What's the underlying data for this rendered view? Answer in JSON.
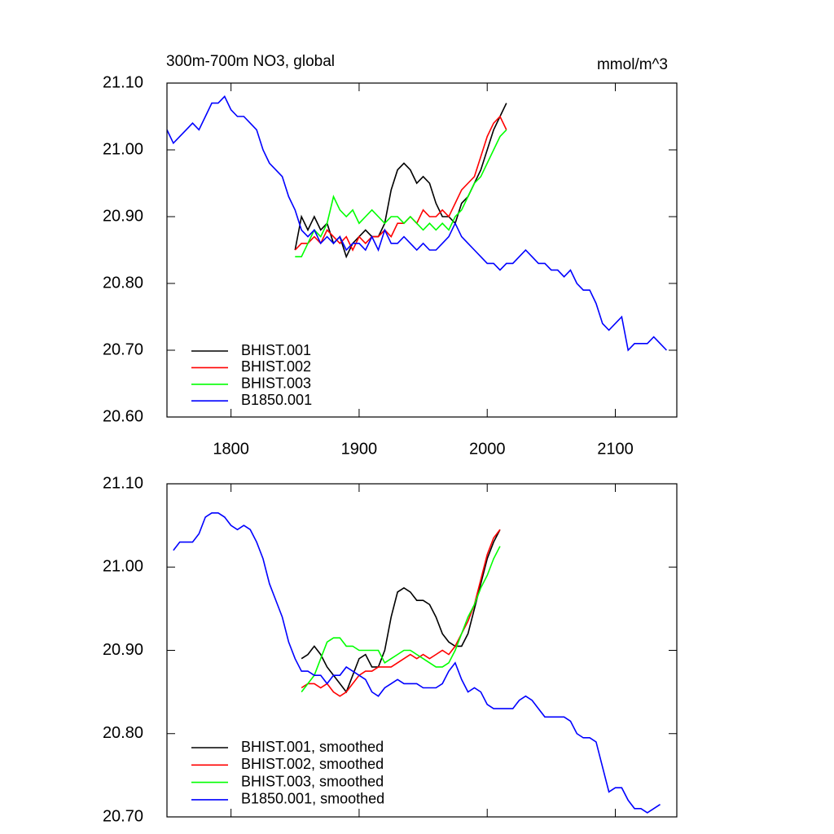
{
  "chart_data": [
    {
      "type": "line",
      "title": "300m-700m NO3, global",
      "units": "mmol/m^3",
      "xlim": [
        1750,
        2148
      ],
      "xticks": [
        1800,
        1900,
        2000,
        2100
      ],
      "ylim": [
        20.6,
        21.1
      ],
      "yticks": [
        {
          "value": 20.6,
          "label": "20.60"
        },
        {
          "value": 20.7,
          "label": "20.70"
        },
        {
          "value": 20.8,
          "label": "20.80"
        },
        {
          "value": 20.9,
          "label": "20.90"
        },
        {
          "value": 21.0,
          "label": "21.00"
        },
        {
          "value": 21.1,
          "label": "21.10"
        }
      ],
      "series": [
        {
          "name": "BHIST.001",
          "color": "#000000",
          "x": [
            1850,
            1855,
            1860,
            1865,
            1870,
            1875,
            1880,
            1885,
            1890,
            1895,
            1900,
            1905,
            1910,
            1915,
            1920,
            1925,
            1930,
            1935,
            1940,
            1945,
            1950,
            1955,
            1960,
            1965,
            1970,
            1975,
            1980,
            1985,
            1990,
            1995,
            2000,
            2005,
            2010,
            2015
          ],
          "values": [
            20.85,
            20.9,
            20.88,
            20.9,
            20.88,
            20.89,
            20.86,
            20.87,
            20.84,
            20.86,
            20.87,
            20.88,
            20.87,
            20.87,
            20.89,
            20.94,
            20.97,
            20.98,
            20.97,
            20.95,
            20.96,
            20.95,
            20.92,
            20.9,
            20.9,
            20.89,
            20.92,
            20.93,
            20.95,
            20.97,
            21.0,
            21.03,
            21.05,
            21.07
          ]
        },
        {
          "name": "BHIST.002",
          "color": "#ff0000",
          "x": [
            1850,
            1855,
            1860,
            1865,
            1870,
            1875,
            1880,
            1885,
            1890,
            1895,
            1900,
            1905,
            1910,
            1915,
            1920,
            1925,
            1930,
            1935,
            1940,
            1945,
            1950,
            1955,
            1960,
            1965,
            1970,
            1975,
            1980,
            1985,
            1990,
            1995,
            2000,
            2005,
            2010,
            2015
          ],
          "values": [
            20.85,
            20.86,
            20.86,
            20.87,
            20.86,
            20.88,
            20.87,
            20.86,
            20.87,
            20.85,
            20.87,
            20.86,
            20.87,
            20.87,
            20.88,
            20.87,
            20.89,
            20.89,
            20.9,
            20.89,
            20.91,
            20.9,
            20.9,
            20.91,
            20.9,
            20.92,
            20.94,
            20.95,
            20.96,
            20.99,
            21.02,
            21.04,
            21.05,
            21.03
          ]
        },
        {
          "name": "BHIST.003",
          "color": "#00ff00",
          "x": [
            1850,
            1855,
            1860,
            1865,
            1870,
            1875,
            1880,
            1885,
            1890,
            1895,
            1900,
            1905,
            1910,
            1915,
            1920,
            1925,
            1930,
            1935,
            1940,
            1945,
            1950,
            1955,
            1960,
            1965,
            1970,
            1975,
            1980,
            1985,
            1990,
            1995,
            2000,
            2005,
            2010,
            2015
          ],
          "values": [
            20.84,
            20.84,
            20.86,
            20.88,
            20.87,
            20.89,
            20.93,
            20.91,
            20.9,
            20.91,
            20.89,
            20.9,
            20.91,
            20.9,
            20.89,
            20.9,
            20.9,
            20.89,
            20.9,
            20.89,
            20.88,
            20.89,
            20.88,
            20.89,
            20.88,
            20.9,
            20.91,
            20.93,
            20.95,
            20.96,
            20.98,
            21.0,
            21.02,
            21.03
          ]
        },
        {
          "name": "B1850.001",
          "color": "#0000ff",
          "x": [
            1750,
            1755,
            1760,
            1765,
            1770,
            1775,
            1780,
            1785,
            1790,
            1795,
            1800,
            1805,
            1810,
            1815,
            1820,
            1825,
            1830,
            1835,
            1840,
            1845,
            1850,
            1855,
            1860,
            1865,
            1870,
            1875,
            1880,
            1885,
            1890,
            1895,
            1900,
            1905,
            1910,
            1915,
            1920,
            1925,
            1930,
            1935,
            1940,
            1945,
            1950,
            1955,
            1960,
            1965,
            1970,
            1975,
            1980,
            1985,
            1990,
            1995,
            2000,
            2005,
            2010,
            2015,
            2020,
            2025,
            2030,
            2035,
            2040,
            2045,
            2050,
            2055,
            2060,
            2065,
            2070,
            2075,
            2080,
            2085,
            2090,
            2095,
            2100,
            2105,
            2110,
            2115,
            2120,
            2125,
            2130,
            2135,
            2140
          ],
          "values": [
            21.03,
            21.01,
            21.02,
            21.03,
            21.04,
            21.03,
            21.05,
            21.07,
            21.07,
            21.08,
            21.06,
            21.05,
            21.05,
            21.04,
            21.03,
            21.0,
            20.98,
            20.97,
            20.96,
            20.93,
            20.91,
            20.88,
            20.87,
            20.88,
            20.86,
            20.87,
            20.86,
            20.87,
            20.85,
            20.86,
            20.86,
            20.85,
            20.87,
            20.85,
            20.88,
            20.86,
            20.86,
            20.87,
            20.86,
            20.85,
            20.86,
            20.85,
            20.85,
            20.86,
            20.87,
            20.89,
            20.87,
            20.86,
            20.85,
            20.84,
            20.83,
            20.83,
            20.82,
            20.83,
            20.83,
            20.84,
            20.85,
            20.84,
            20.83,
            20.83,
            20.82,
            20.82,
            20.81,
            20.82,
            20.8,
            20.79,
            20.79,
            20.77,
            20.74,
            20.73,
            20.74,
            20.75,
            20.7,
            20.71,
            20.71,
            20.71,
            20.72,
            20.71,
            20.7
          ]
        }
      ]
    },
    {
      "type": "line",
      "xlim": [
        1750,
        2148
      ],
      "ylim": [
        20.7,
        21.1
      ],
      "yticks": [
        {
          "value": 20.7,
          "label": "20.70"
        },
        {
          "value": 20.8,
          "label": "20.80"
        },
        {
          "value": 20.9,
          "label": "20.90"
        },
        {
          "value": 21.0,
          "label": "21.00"
        },
        {
          "value": 21.1,
          "label": "21.10"
        }
      ],
      "series": [
        {
          "name": "BHIST.001, smoothed",
          "color": "#000000",
          "x": [
            1855,
            1860,
            1865,
            1870,
            1875,
            1880,
            1885,
            1890,
            1895,
            1900,
            1905,
            1910,
            1915,
            1920,
            1925,
            1930,
            1935,
            1940,
            1945,
            1950,
            1955,
            1960,
            1965,
            1970,
            1975,
            1980,
            1985,
            1990,
            1995,
            2000,
            2005,
            2010
          ],
          "values": [
            20.89,
            20.895,
            20.905,
            20.895,
            20.88,
            20.87,
            20.86,
            20.85,
            20.87,
            20.89,
            20.895,
            20.88,
            20.88,
            20.9,
            20.94,
            20.97,
            20.975,
            20.97,
            20.96,
            20.96,
            20.955,
            20.94,
            20.92,
            20.91,
            20.905,
            20.905,
            20.92,
            20.95,
            20.98,
            21.01,
            21.03,
            21.045
          ]
        },
        {
          "name": "BHIST.002, smoothed",
          "color": "#ff0000",
          "x": [
            1855,
            1860,
            1865,
            1870,
            1875,
            1880,
            1885,
            1890,
            1895,
            1900,
            1905,
            1910,
            1915,
            1920,
            1925,
            1930,
            1935,
            1940,
            1945,
            1950,
            1955,
            1960,
            1965,
            1970,
            1975,
            1980,
            1985,
            1990,
            1995,
            2000,
            2005,
            2010
          ],
          "values": [
            20.855,
            20.86,
            20.86,
            20.855,
            20.86,
            20.85,
            20.845,
            20.85,
            20.86,
            20.87,
            20.875,
            20.875,
            20.88,
            20.88,
            20.88,
            20.885,
            20.89,
            20.895,
            20.89,
            20.895,
            20.89,
            20.895,
            20.9,
            20.895,
            20.905,
            20.92,
            20.935,
            20.955,
            20.985,
            21.015,
            21.035,
            21.045
          ]
        },
        {
          "name": "BHIST.003, smoothed",
          "color": "#00ff00",
          "x": [
            1855,
            1860,
            1865,
            1870,
            1875,
            1880,
            1885,
            1890,
            1895,
            1900,
            1905,
            1910,
            1915,
            1920,
            1925,
            1930,
            1935,
            1940,
            1945,
            1950,
            1955,
            1960,
            1965,
            1970,
            1975,
            1980,
            1985,
            1990,
            1995,
            2000,
            2005,
            2010
          ],
          "values": [
            20.85,
            20.86,
            20.87,
            20.89,
            20.91,
            20.915,
            20.915,
            20.905,
            20.905,
            20.9,
            20.9,
            20.9,
            20.9,
            20.885,
            20.89,
            20.895,
            20.9,
            20.9,
            20.895,
            20.89,
            20.885,
            20.88,
            20.88,
            20.885,
            20.9,
            20.92,
            20.94,
            20.955,
            20.975,
            20.99,
            21.01,
            21.025
          ]
        },
        {
          "name": "B1850.001, smoothed",
          "color": "#0000ff",
          "x": [
            1755,
            1760,
            1765,
            1770,
            1775,
            1780,
            1785,
            1790,
            1795,
            1800,
            1805,
            1810,
            1815,
            1820,
            1825,
            1830,
            1835,
            1840,
            1845,
            1850,
            1855,
            1860,
            1865,
            1870,
            1875,
            1880,
            1885,
            1890,
            1895,
            1900,
            1905,
            1910,
            1915,
            1920,
            1925,
            1930,
            1935,
            1940,
            1945,
            1950,
            1955,
            1960,
            1965,
            1970,
            1975,
            1980,
            1985,
            1990,
            1995,
            2000,
            2005,
            2010,
            2015,
            2020,
            2025,
            2030,
            2035,
            2040,
            2045,
            2050,
            2055,
            2060,
            2065,
            2070,
            2075,
            2080,
            2085,
            2090,
            2095,
            2100,
            2105,
            2110,
            2115,
            2120,
            2125,
            2130,
            2135
          ],
          "values": [
            21.02,
            21.03,
            21.03,
            21.03,
            21.04,
            21.06,
            21.065,
            21.065,
            21.06,
            21.05,
            21.045,
            21.05,
            21.045,
            21.03,
            21.01,
            20.98,
            20.96,
            20.94,
            20.91,
            20.89,
            20.875,
            20.875,
            20.87,
            20.87,
            20.86,
            20.87,
            20.87,
            20.88,
            20.875,
            20.87,
            20.865,
            20.85,
            20.845,
            20.855,
            20.86,
            20.865,
            20.86,
            20.86,
            20.86,
            20.855,
            20.855,
            20.855,
            20.86,
            20.875,
            20.885,
            20.865,
            20.85,
            20.855,
            20.85,
            20.835,
            20.83,
            20.83,
            20.83,
            20.83,
            20.84,
            20.845,
            20.84,
            20.83,
            20.82,
            20.82,
            20.82,
            20.82,
            20.815,
            20.8,
            20.795,
            20.795,
            20.79,
            20.76,
            20.73,
            20.735,
            20.735,
            20.72,
            20.71,
            20.71,
            20.705,
            20.71,
            20.715
          ]
        }
      ]
    }
  ]
}
